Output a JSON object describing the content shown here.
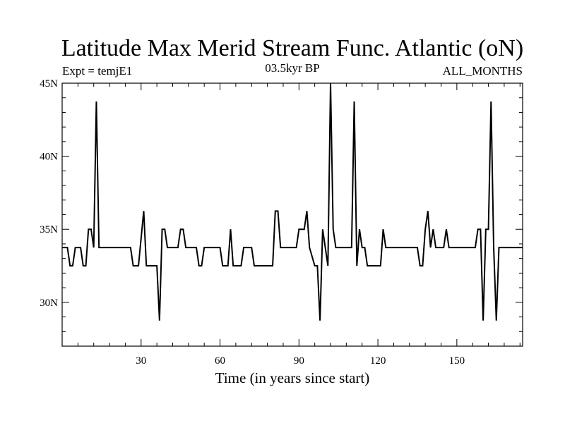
{
  "chart_data": {
    "type": "line",
    "title": "Latitude Max Merid Stream Func. Atlantic (oN)",
    "subtitle_left": "Expt = temjE1",
    "subtitle_center": "03.5kyr BP",
    "subtitle_right": "ALL_MONTHS",
    "xlabel": "Time (in years since start)",
    "ylabel": "",
    "xlim": [
      0,
      175
    ],
    "ylim": [
      27,
      45
    ],
    "x_ticks": [
      30,
      60,
      90,
      120,
      150
    ],
    "x_tick_labels": [
      "30",
      "60",
      "90",
      "120",
      "150"
    ],
    "y_ticks": [
      30,
      35,
      40,
      45
    ],
    "y_tick_labels": [
      "30N",
      "35N",
      "40N",
      "45N"
    ],
    "grid": false,
    "series": [
      {
        "name": "",
        "color": "#000000",
        "points": [
          [
            0,
            33.75
          ],
          [
            2,
            33.75
          ],
          [
            3,
            32.5
          ],
          [
            4,
            32.5
          ],
          [
            5,
            33.75
          ],
          [
            7,
            33.75
          ],
          [
            8,
            32.5
          ],
          [
            9,
            32.5
          ],
          [
            10,
            35
          ],
          [
            11,
            35
          ],
          [
            12,
            33.75
          ],
          [
            13,
            43.75
          ],
          [
            14,
            33.75
          ],
          [
            26,
            33.75
          ],
          [
            27,
            32.5
          ],
          [
            29,
            32.5
          ],
          [
            31,
            36.25
          ],
          [
            32,
            32.5
          ],
          [
            36,
            32.5
          ],
          [
            37,
            28.75
          ],
          [
            38,
            35
          ],
          [
            39,
            35
          ],
          [
            40,
            33.75
          ],
          [
            44,
            33.75
          ],
          [
            45,
            35
          ],
          [
            46,
            35
          ],
          [
            47,
            33.75
          ],
          [
            51,
            33.75
          ],
          [
            52,
            32.5
          ],
          [
            53,
            32.5
          ],
          [
            54,
            33.75
          ],
          [
            60,
            33.75
          ],
          [
            61,
            32.5
          ],
          [
            63,
            32.5
          ],
          [
            64,
            35
          ],
          [
            65,
            32.5
          ],
          [
            68,
            32.5
          ],
          [
            69,
            33.75
          ],
          [
            72,
            33.75
          ],
          [
            73,
            32.5
          ],
          [
            80,
            32.5
          ],
          [
            81,
            36.25
          ],
          [
            82,
            36.25
          ],
          [
            83,
            33.75
          ],
          [
            89,
            33.75
          ],
          [
            90,
            35
          ],
          [
            92,
            35
          ],
          [
            93,
            36.25
          ],
          [
            94,
            33.75
          ],
          [
            96,
            32.5
          ],
          [
            97,
            32.5
          ],
          [
            98,
            28.75
          ],
          [
            99,
            35
          ],
          [
            100,
            33.75
          ],
          [
            101,
            32.5
          ],
          [
            102,
            45
          ],
          [
            103,
            35
          ],
          [
            104,
            33.75
          ],
          [
            110,
            33.75
          ],
          [
            111,
            43.75
          ],
          [
            112,
            32.5
          ],
          [
            113,
            35
          ],
          [
            114,
            33.75
          ],
          [
            115,
            33.75
          ],
          [
            116,
            32.5
          ],
          [
            121,
            32.5
          ],
          [
            122,
            35
          ],
          [
            123,
            33.75
          ],
          [
            135,
            33.75
          ],
          [
            136,
            32.5
          ],
          [
            137,
            32.5
          ],
          [
            138,
            35
          ],
          [
            139,
            36.25
          ],
          [
            140,
            33.75
          ],
          [
            141,
            35
          ],
          [
            142,
            33.75
          ],
          [
            145,
            33.75
          ],
          [
            146,
            35
          ],
          [
            147,
            33.75
          ],
          [
            157,
            33.75
          ],
          [
            158,
            35
          ],
          [
            159,
            35
          ],
          [
            160,
            28.75
          ],
          [
            161,
            35
          ],
          [
            162,
            35
          ],
          [
            163,
            43.75
          ],
          [
            164,
            33.75
          ],
          [
            165,
            28.75
          ],
          [
            166,
            33.75
          ],
          [
            175,
            33.75
          ]
        ]
      }
    ]
  }
}
